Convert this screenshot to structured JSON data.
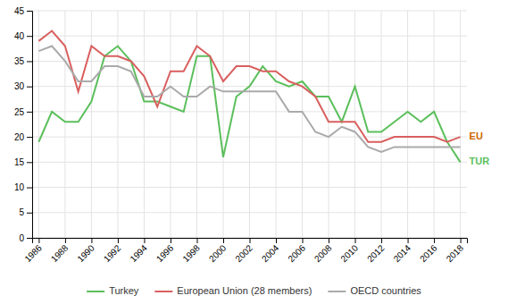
{
  "chart_data": {
    "type": "line",
    "x": [
      1986,
      1987,
      1988,
      1989,
      1990,
      1991,
      1992,
      1993,
      1994,
      1995,
      1996,
      1997,
      1998,
      1999,
      2000,
      2001,
      2002,
      2003,
      2004,
      2005,
      2006,
      2007,
      2008,
      2009,
      2010,
      2011,
      2012,
      2013,
      2014,
      2015,
      2016,
      2017,
      2018
    ],
    "series": [
      {
        "name": "Turkey",
        "color": "#5BBF5B",
        "values": [
          19,
          25,
          23,
          23,
          27,
          36,
          38,
          35,
          27,
          27,
          26,
          25,
          36,
          36,
          16,
          28,
          30,
          34,
          31,
          30,
          31,
          28,
          28,
          23,
          30,
          21,
          21,
          23,
          25,
          23,
          25,
          19,
          15
        ]
      },
      {
        "name": "European Union (28 members)",
        "color": "#D95F5F",
        "values": [
          39,
          41,
          38,
          29,
          38,
          36,
          36,
          35,
          32,
          26,
          33,
          33,
          38,
          36,
          31,
          34,
          34,
          33,
          33,
          31,
          30,
          28,
          23,
          23,
          23,
          19,
          19,
          20,
          20,
          20,
          20,
          19,
          20
        ]
      },
      {
        "name": "OECD countries",
        "color": "#AAAAAA",
        "values": [
          37,
          38,
          35,
          31,
          31,
          34,
          34,
          33,
          28,
          28,
          30,
          28,
          28,
          30,
          29,
          29,
          29,
          29,
          29,
          25,
          25,
          21,
          20,
          22,
          21,
          18,
          17,
          18,
          18,
          18,
          18,
          18,
          18
        ]
      }
    ],
    "xlim": [
      1985.5,
      2018.5
    ],
    "xticks": [
      1986,
      1988,
      1990,
      1992,
      1994,
      1996,
      1998,
      2000,
      2002,
      2004,
      2006,
      2008,
      2010,
      2012,
      2014,
      2016,
      2018
    ],
    "ylim": [
      0,
      45
    ],
    "yticks": [
      0,
      5,
      10,
      15,
      20,
      25,
      30,
      35,
      40,
      45
    ],
    "grid": true,
    "legend": "bottom",
    "annotations": [
      {
        "text": "EU",
        "x": 2018,
        "y": 20,
        "color": "#CC6600"
      },
      {
        "text": "TUR",
        "x": 2018,
        "y": 15,
        "color": "#5BBF5B"
      }
    ]
  }
}
